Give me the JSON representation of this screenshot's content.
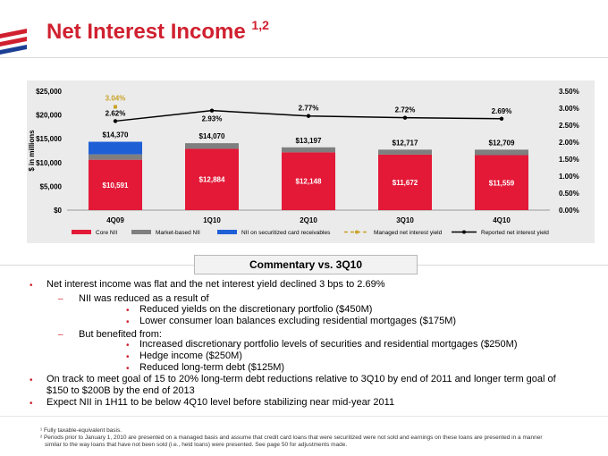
{
  "title": "Net Interest Income",
  "title_sup": "1,2",
  "colors": {
    "core": "#e31937",
    "market": "#7f7f7f",
    "securitized": "#1f5fd6",
    "managed_yield": "#c9a227",
    "reported_yield": "#000000",
    "title_red": "#d0202f"
  },
  "chart_data": {
    "type": "bar",
    "stacked": true,
    "ylabel": "$ in millions",
    "categories": [
      "4Q09",
      "1Q10",
      "2Q10",
      "3Q10",
      "4Q10"
    ],
    "ylim": [
      0,
      25000
    ],
    "y_ticks": [
      "$0",
      "$5,000",
      "$10,000",
      "$15,000",
      "$20,000",
      "$25,000"
    ],
    "y2lim": [
      0,
      3.5
    ],
    "y2_ticks": [
      "0.00%",
      "0.50%",
      "1.00%",
      "1.50%",
      "2.00%",
      "2.50%",
      "3.00%",
      "3.50%"
    ],
    "series": [
      {
        "name": "Core NII",
        "values": [
          10591,
          12884,
          12148,
          11672,
          11559
        ],
        "labels": [
          "$10,591",
          "$12,884",
          "$12,148",
          "$11,672",
          "$11,559"
        ]
      },
      {
        "name": "Market-based NII",
        "values": [
          1129,
          1186,
          1049,
          1045,
          1150
        ]
      },
      {
        "name": "NII on securitized card receivables",
        "values": [
          2650,
          0,
          0,
          0,
          0
        ]
      }
    ],
    "totals": [
      "$14,370",
      "$14,070",
      "$13,197",
      "$12,717",
      "$12,709"
    ],
    "lines": [
      {
        "name": "Managed net interest yield",
        "values": [
          3.04,
          null,
          null,
          null,
          null
        ],
        "labels": [
          "3.04%",
          "",
          "",
          "",
          ""
        ]
      },
      {
        "name": "Reported net interest yield",
        "values": [
          2.62,
          2.93,
          2.77,
          2.72,
          2.69
        ],
        "labels": [
          "2.62%",
          "2.93%",
          "2.77%",
          "2.72%",
          "2.69%"
        ]
      }
    ],
    "legend_position": "bottom"
  },
  "commentary": {
    "heading": "Commentary vs. 3Q10",
    "b1": "Net interest income was flat and the net interest yield declined 3 bps to 2.69%",
    "b1a": "NII was reduced as a result of",
    "b1a1": "Reduced yields on the discretionary portfolio ($450M)",
    "b1a2": "Lower consumer loan balances excluding residential mortgages ($175M)",
    "b1b": "But benefited from:",
    "b1b1": "Increased discretionary portfolio levels of securities and residential mortgages ($250M)",
    "b1b2": "Hedge income ($250M)",
    "b1b3": "Reduced long-term debt ($125M)",
    "b2_line1": "On track to meet goal of 15 to 20% long-term debt reductions relative to 3Q10 by end of 2011 and longer term goal of",
    "b2_line2": "$150 to $200B by the end of 2013",
    "b3": "Expect NII in 1H11 to be below 4Q10 level before stabilizing near mid-year 2011"
  },
  "footnotes": {
    "f1": "¹ Fully taxable-equivalent basis.",
    "f2_line1": "² Periods prior to January 1, 2010 are presented on a managed basis and assume that credit card loans that were securitized were not sold and earnings on these loans are presented in a manner",
    "f2_line2": "similar to the way loans that have not been sold (i.e., held loans) were presented. See page 50 for adjustments made."
  }
}
